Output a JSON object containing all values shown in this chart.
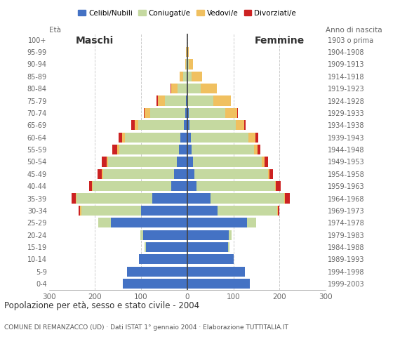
{
  "age_groups": [
    "0-4",
    "5-9",
    "10-14",
    "15-19",
    "20-24",
    "25-29",
    "30-34",
    "35-39",
    "40-44",
    "45-49",
    "50-54",
    "55-59",
    "60-64",
    "65-69",
    "70-74",
    "75-79",
    "80-84",
    "85-89",
    "90-94",
    "95-99",
    "100+"
  ],
  "males": {
    "celibi": [
      140,
      130,
      105,
      90,
      95,
      165,
      100,
      75,
      35,
      28,
      22,
      18,
      15,
      8,
      5,
      3,
      1,
      1,
      0,
      0,
      0
    ],
    "coniugati": [
      0,
      0,
      0,
      3,
      6,
      28,
      130,
      165,
      170,
      155,
      150,
      130,
      120,
      98,
      75,
      45,
      20,
      8,
      3,
      1,
      0
    ],
    "vedovi": [
      0,
      0,
      0,
      0,
      0,
      0,
      2,
      2,
      2,
      2,
      3,
      4,
      6,
      8,
      12,
      16,
      14,
      7,
      2,
      1,
      0
    ],
    "divorziati": [
      0,
      0,
      0,
      0,
      0,
      0,
      3,
      8,
      6,
      10,
      10,
      10,
      8,
      8,
      2,
      2,
      1,
      0,
      0,
      0,
      0
    ]
  },
  "females": {
    "nubili": [
      135,
      125,
      100,
      88,
      90,
      130,
      65,
      50,
      20,
      15,
      12,
      10,
      8,
      5,
      3,
      1,
      1,
      0,
      0,
      0,
      0
    ],
    "coniugate": [
      0,
      0,
      0,
      3,
      6,
      20,
      130,
      160,
      170,
      160,
      150,
      135,
      125,
      100,
      80,
      55,
      28,
      10,
      4,
      1,
      0
    ],
    "vedove": [
      0,
      0,
      0,
      0,
      0,
      0,
      2,
      2,
      2,
      3,
      6,
      8,
      15,
      18,
      25,
      38,
      35,
      22,
      8,
      2,
      1
    ],
    "divorziate": [
      0,
      0,
      0,
      0,
      0,
      0,
      3,
      10,
      10,
      8,
      8,
      6,
      6,
      4,
      2,
      1,
      0,
      0,
      0,
      0,
      0
    ]
  },
  "colors": {
    "celibi": "#4472c4",
    "coniugati": "#c5d9a0",
    "vedovi": "#f0c060",
    "divorziati": "#cc2222"
  },
  "title": "Popolazione per età, sesso e stato civile - 2004",
  "subtitle": "COMUNE DI REMANZACCO (UD) · Dati ISTAT 1° gennaio 2004 · Elaborazione TUTTITALIA.IT",
  "legend_labels": [
    "Celibi/Nubili",
    "Coniugati/e",
    "Vedovi/e",
    "Divorziati/e"
  ],
  "xlim": 300,
  "birth_years": [
    "1999-2003",
    "1994-1998",
    "1989-1993",
    "1984-1988",
    "1979-1983",
    "1974-1978",
    "1969-1973",
    "1964-1968",
    "1959-1963",
    "1954-1958",
    "1949-1953",
    "1944-1948",
    "1939-1943",
    "1934-1938",
    "1929-1933",
    "1924-1928",
    "1919-1923",
    "1914-1918",
    "1909-1913",
    "1904-1908",
    "1903 o prima"
  ]
}
